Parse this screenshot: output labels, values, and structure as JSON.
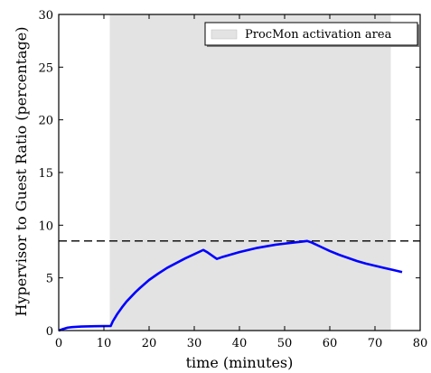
{
  "chart_data": {
    "type": "line",
    "title": "",
    "xlabel": "time (minutes)",
    "ylabel": "Hypervisor to Guest Ratio (percentage)",
    "xlim": [
      0,
      80
    ],
    "ylim": [
      0,
      30
    ],
    "xticks": [
      0,
      10,
      20,
      30,
      40,
      50,
      60,
      70,
      80
    ],
    "yticks": [
      0,
      5,
      10,
      15,
      20,
      25,
      30
    ],
    "grid": false,
    "legend_position": "top-right",
    "shaded_region": {
      "label": "ProcMon activation area",
      "x_start": 11.3,
      "x_end": 73.5,
      "color": "#e3e3e3"
    },
    "reference_line": {
      "y": 8.5,
      "style": "dashed",
      "color": "#000000"
    },
    "series": [
      {
        "color": "#0000ff",
        "x": [
          0,
          1,
          2,
          3,
          5,
          8,
          10,
          11.5,
          12,
          13,
          14,
          15,
          16,
          17,
          18,
          20,
          22,
          24,
          26,
          28,
          30,
          32,
          33,
          34,
          35,
          36,
          38,
          40,
          42,
          44,
          46,
          48,
          50,
          52,
          54,
          55,
          56,
          58,
          60,
          62,
          64,
          66,
          68,
          70,
          72,
          74,
          76
        ],
        "y": [
          0,
          0.15,
          0.28,
          0.33,
          0.38,
          0.41,
          0.42,
          0.43,
          0.9,
          1.6,
          2.2,
          2.75,
          3.2,
          3.65,
          4.05,
          4.8,
          5.4,
          5.95,
          6.4,
          6.85,
          7.25,
          7.65,
          7.4,
          7.1,
          6.8,
          6.95,
          7.2,
          7.45,
          7.65,
          7.85,
          8.0,
          8.15,
          8.25,
          8.35,
          8.45,
          8.5,
          8.35,
          7.95,
          7.55,
          7.2,
          6.9,
          6.6,
          6.35,
          6.15,
          5.95,
          5.75,
          5.55
        ]
      }
    ]
  }
}
